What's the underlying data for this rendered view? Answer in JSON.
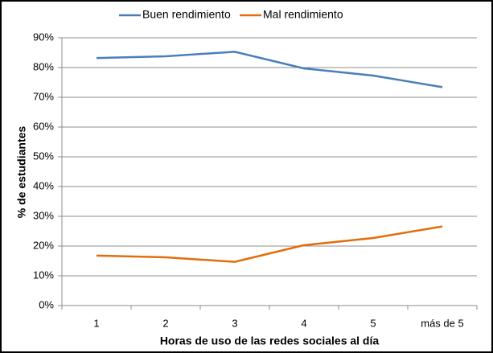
{
  "chart_data": {
    "type": "line",
    "xlabel": "Horas de uso de las redes sociales al día",
    "ylabel": "% de estudiantes",
    "categories": [
      "1",
      "2",
      "3",
      "4",
      "5",
      "más de 5"
    ],
    "series": [
      {
        "name": "Buen rendimiento",
        "color": "#4a7ebb",
        "values": [
          83.2,
          83.8,
          85.3,
          79.7,
          77.3,
          73.4
        ]
      },
      {
        "name": "Mal rendimiento",
        "color": "#e46c0a",
        "values": [
          16.8,
          16.2,
          14.7,
          20.3,
          22.7,
          26.6
        ]
      }
    ],
    "ylim": [
      0,
      90
    ],
    "yticks": [
      {
        "value": 0,
        "label": "0%"
      },
      {
        "value": 10,
        "label": "10%"
      },
      {
        "value": 20,
        "label": "20%"
      },
      {
        "value": 30,
        "label": "30%"
      },
      {
        "value": 40,
        "label": "40%"
      },
      {
        "value": 50,
        "label": "50%"
      },
      {
        "value": 60,
        "label": "60%"
      },
      {
        "value": 70,
        "label": "70%"
      },
      {
        "value": 80,
        "label": "80%"
      },
      {
        "value": 90,
        "label": "90%"
      }
    ],
    "grid": true,
    "legend": "top"
  }
}
